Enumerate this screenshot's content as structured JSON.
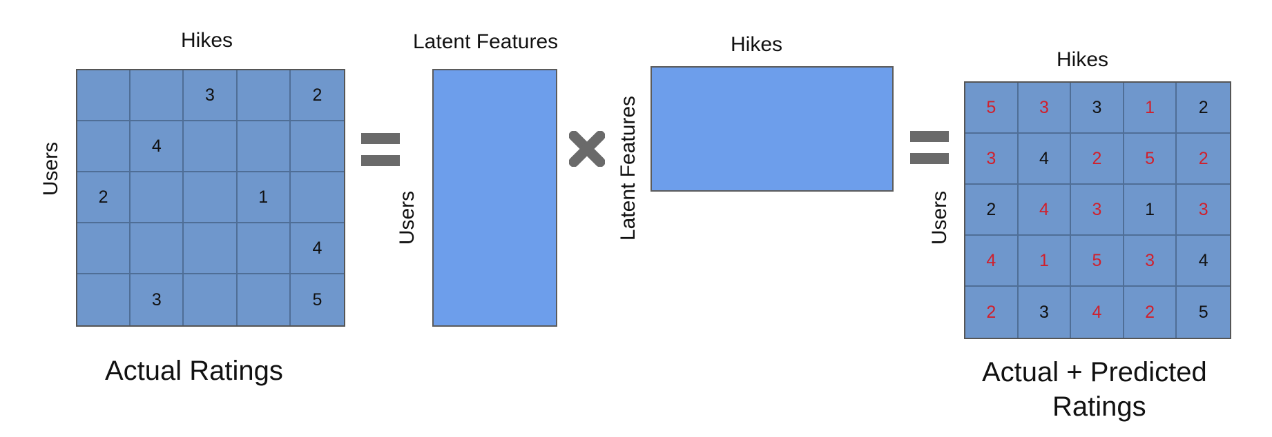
{
  "actual": {
    "column_label": "Hikes",
    "row_label": "Users",
    "caption": "Actual Ratings",
    "cells": [
      [
        "",
        "",
        "3",
        "",
        "2"
      ],
      [
        "",
        "4",
        "",
        "",
        ""
      ],
      [
        "2",
        "",
        "",
        "1",
        ""
      ],
      [
        "",
        "",
        "",
        "",
        "4"
      ],
      [
        "",
        "3",
        "",
        "",
        "5"
      ]
    ]
  },
  "user_factors": {
    "top_label": "Latent Features",
    "side_label": "Users"
  },
  "hike_factors": {
    "top_label": "Hikes",
    "side_label": "Latent Features"
  },
  "predicted": {
    "column_label": "Hikes",
    "row_label": "Users",
    "caption_line1": "Actual + Predicted",
    "caption_line2": "Ratings",
    "cells": [
      [
        "5",
        "3",
        "3",
        "1",
        "2"
      ],
      [
        "3",
        "4",
        "2",
        "5",
        "2"
      ],
      [
        "2",
        "4",
        "3",
        "1",
        "3"
      ],
      [
        "4",
        "1",
        "5",
        "3",
        "4"
      ],
      [
        "2",
        "3",
        "4",
        "2",
        "5"
      ]
    ],
    "predicted_mask": [
      [
        true,
        true,
        false,
        true,
        false
      ],
      [
        true,
        false,
        true,
        true,
        true
      ],
      [
        false,
        true,
        true,
        false,
        true
      ],
      [
        true,
        true,
        true,
        true,
        false
      ],
      [
        true,
        false,
        true,
        true,
        false
      ]
    ],
    "predicted_color": "#d0202c"
  },
  "operators": {
    "equals_icon": "equals-icon",
    "multiply_icon": "multiply-icon",
    "operator_color": "#6a6a6a"
  }
}
